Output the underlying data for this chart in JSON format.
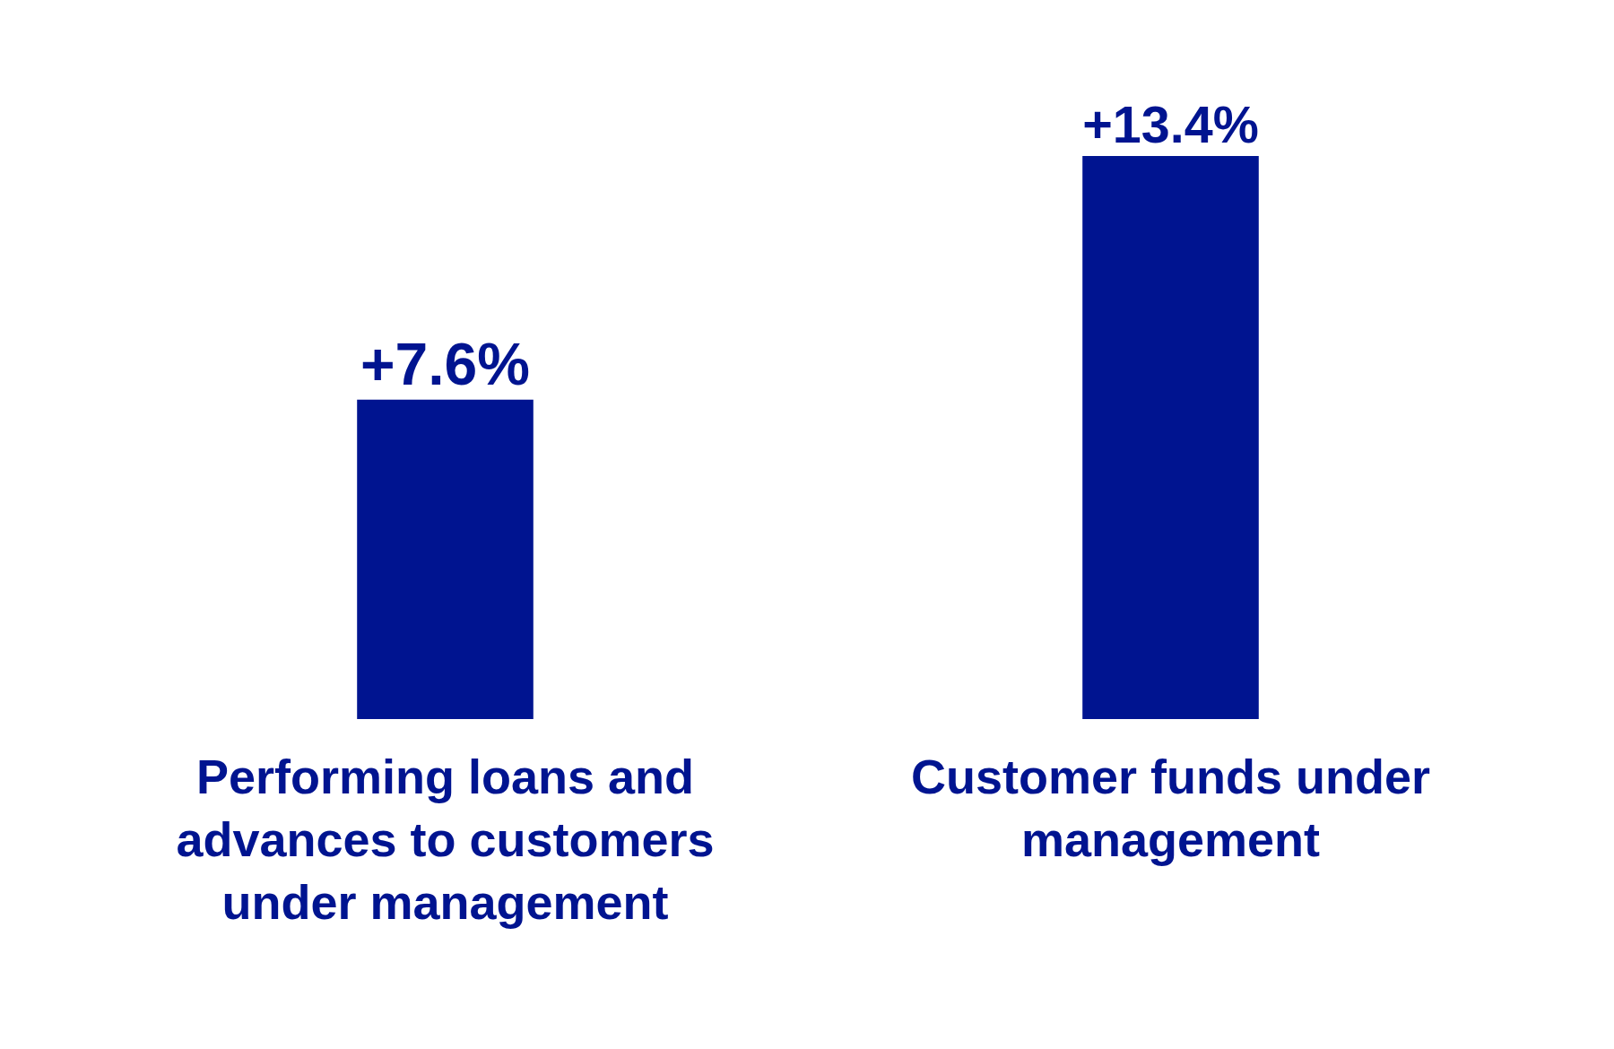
{
  "chart_data": {
    "type": "bar",
    "categories": [
      "Performing loans and advances to customers under management",
      "Customer funds under management"
    ],
    "values": [
      7.6,
      13.4
    ],
    "color": "#001490",
    "value_labels": [
      "+7.6%",
      "+13.4%"
    ],
    "grid": false,
    "legend": false
  }
}
